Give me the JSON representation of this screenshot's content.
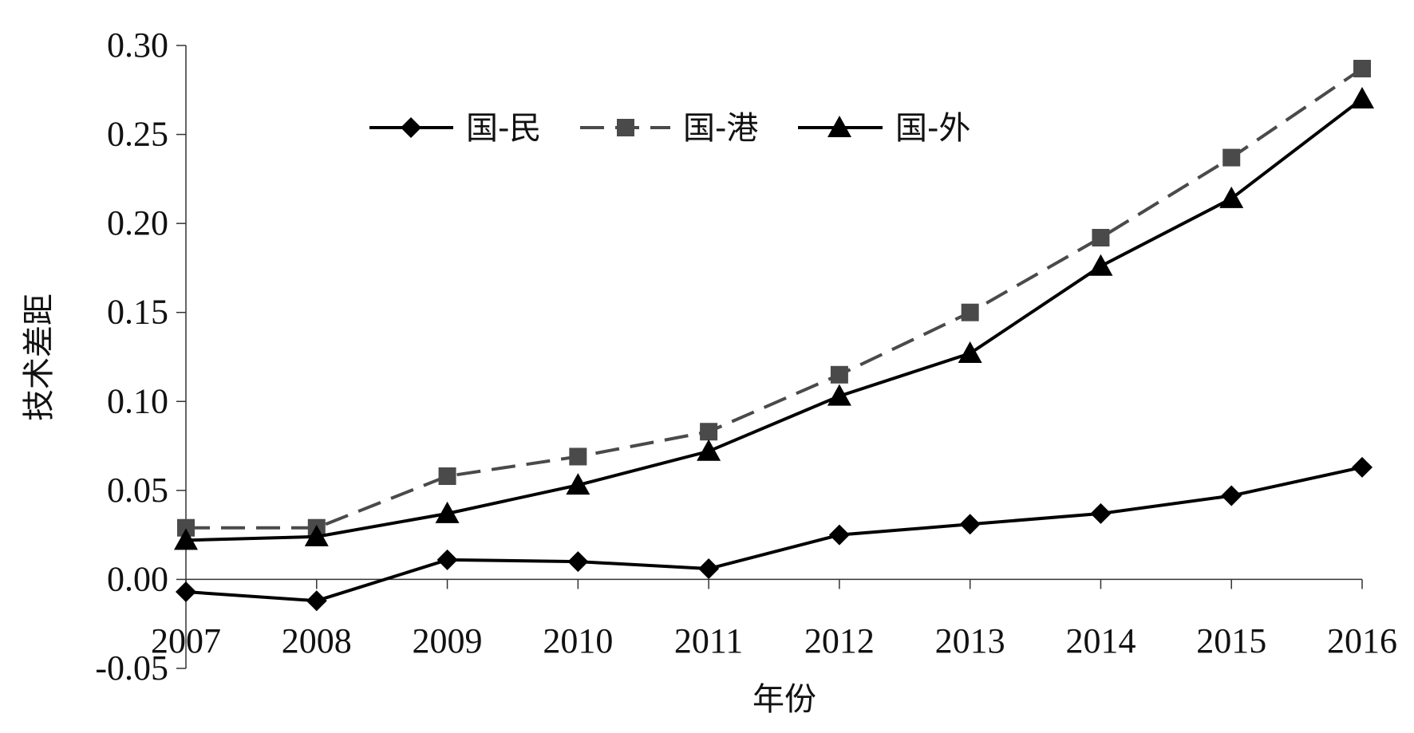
{
  "chart_data": {
    "type": "line",
    "title": "",
    "xlabel": "年份",
    "ylabel": "技术差距",
    "categories": [
      "2007",
      "2008",
      "2009",
      "2010",
      "2011",
      "2012",
      "2013",
      "2014",
      "2015",
      "2016"
    ],
    "ylim": [
      -0.05,
      0.3
    ],
    "yticks": [
      "-0.05",
      "0.00",
      "0.05",
      "0.10",
      "0.15",
      "0.20",
      "0.25",
      "0.30"
    ],
    "grid": false,
    "legend_position": "top-center",
    "series": [
      {
        "name": "国-民",
        "marker": "diamond",
        "line_style": "solid",
        "color": "#000000",
        "values": [
          -0.007,
          -0.012,
          0.011,
          0.01,
          0.006,
          0.025,
          0.031,
          0.037,
          0.047,
          0.063
        ]
      },
      {
        "name": "国-港",
        "marker": "square",
        "line_style": "dashed",
        "color": "#4a4a4a",
        "values": [
          0.029,
          0.029,
          0.058,
          0.069,
          0.083,
          0.115,
          0.15,
          0.192,
          0.237,
          0.287
        ]
      },
      {
        "name": "国-外",
        "marker": "triangle",
        "line_style": "solid",
        "color": "#000000",
        "values": [
          0.022,
          0.024,
          0.037,
          0.053,
          0.072,
          0.103,
          0.127,
          0.176,
          0.214,
          0.27
        ]
      }
    ]
  }
}
